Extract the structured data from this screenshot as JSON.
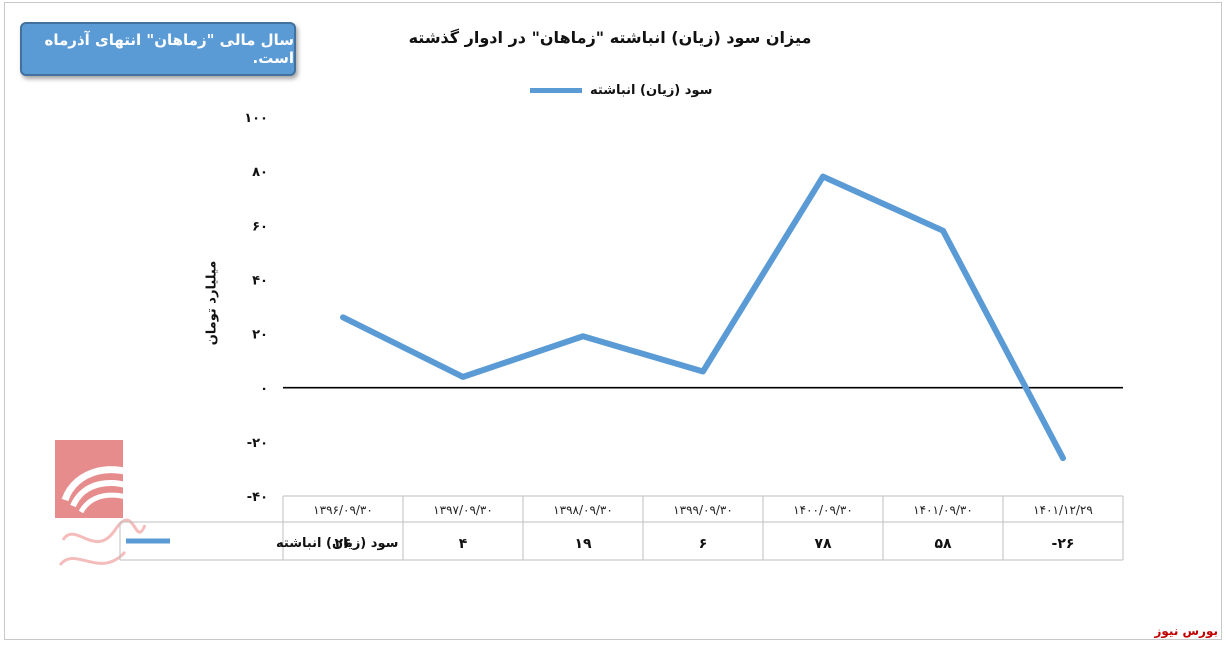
{
  "badge": {
    "text": "سال مالی \"زماهان\" انتهای آذرماه است."
  },
  "source_label": "بورس نیوز",
  "watermark_text": "بورس نیوز",
  "colors": {
    "series": "#5b9bd5",
    "badge": "#5b9bd5",
    "source": "#c00000",
    "watermark": "#e06666"
  },
  "chart_data": {
    "type": "line",
    "title": "میزان سود (زیان) انباشته \"زماهان\" در ادوار گذشته",
    "xlabel": "",
    "ylabel": "میلیارد تومان",
    "categories": [
      "۱۳۹۶/۰۹/۳۰",
      "۱۳۹۷/۰۹/۳۰",
      "۱۳۹۸/۰۹/۳۰",
      "۱۳۹۹/۰۹/۳۰",
      "۱۴۰۰/۰۹/۳۰",
      "۱۴۰۱/۰۹/۳۰",
      "۱۴۰۱/۱۲/۲۹"
    ],
    "series": [
      {
        "name": "سود (زیان) انباشته",
        "values": [
          26,
          4,
          19,
          6,
          78,
          58,
          -26
        ],
        "labels": [
          "۲۶",
          "۴",
          "۱۹",
          "۶",
          "۷۸",
          "۵۸",
          "-۲۶"
        ]
      }
    ],
    "ylim": [
      -40,
      100
    ],
    "yticks": [
      -40,
      -20,
      0,
      20,
      40,
      60,
      80,
      100
    ],
    "ytick_labels": [
      "-۴۰",
      "-۲۰",
      "۰",
      "۲۰",
      "۴۰",
      "۶۰",
      "۸۰",
      "۱۰۰"
    ],
    "legend": "top-center",
    "data_table": true,
    "grid": false
  }
}
